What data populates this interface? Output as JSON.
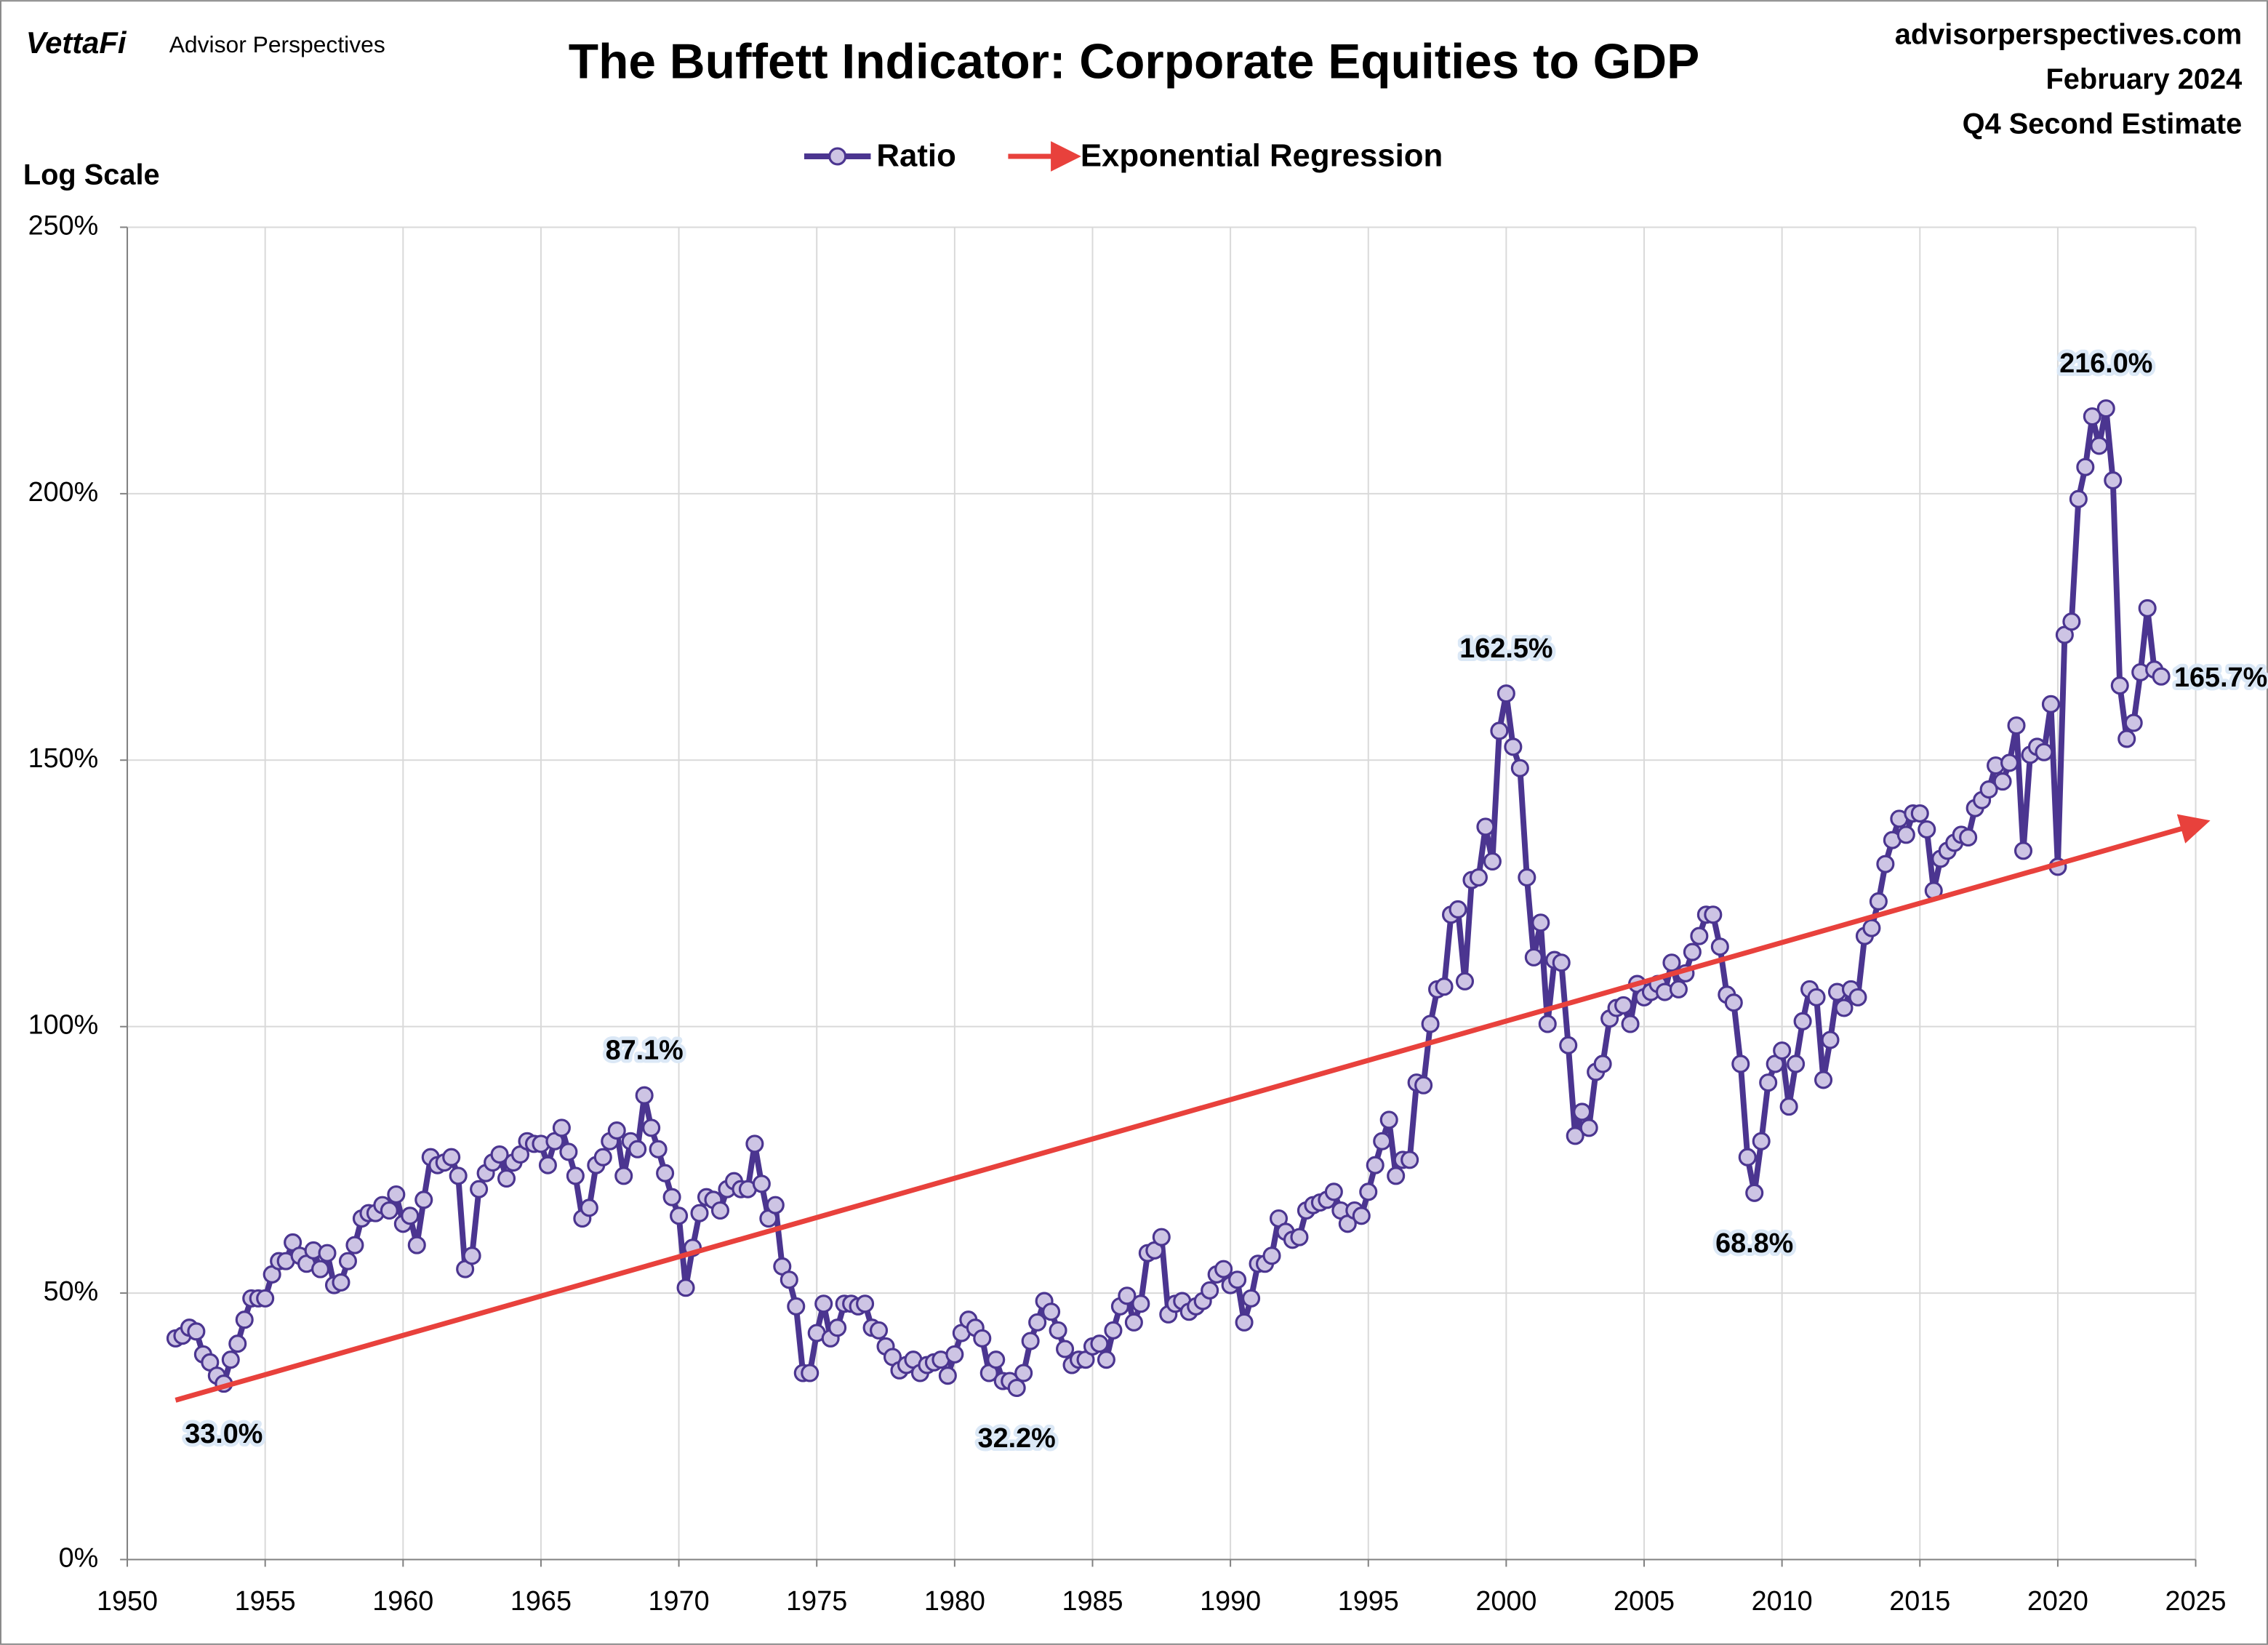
{
  "header": {
    "brand": "VettaFi",
    "brand_sub": "Advisor Perspectives",
    "site": "advisorperspectives.com",
    "date": "February 2024",
    "estimate": "Q4 Second Estimate"
  },
  "chart_data": {
    "type": "line",
    "title": "The Buffett Indicator: Corporate Equities to GDP",
    "y_axis_note": "Log Scale",
    "xlim": [
      1950,
      2025
    ],
    "xticks": [
      1950,
      1955,
      1960,
      1965,
      1970,
      1975,
      1980,
      1985,
      1990,
      1995,
      2000,
      2005,
      2010,
      2015,
      2020,
      2025
    ],
    "ylim": [
      0,
      250
    ],
    "yticks": [
      {
        "value": 0,
        "label": "0%"
      },
      {
        "value": 50,
        "label": "50%"
      },
      {
        "value": 100,
        "label": "100%"
      },
      {
        "value": 150,
        "label": "150%"
      },
      {
        "value": 200,
        "label": "200%"
      },
      {
        "value": 250,
        "label": "250%"
      }
    ],
    "grid": true,
    "legend": "top",
    "series": [
      {
        "name": "Ratio",
        "color": "#4b3590",
        "marker": "circle",
        "marker_color": "#cdc4e4",
        "label_color": "#3d2a8c",
        "x": [
          1951.75,
          1952,
          1952.25,
          1952.5,
          1952.75,
          1953,
          1953.25,
          1953.5,
          1953.75,
          1954,
          1954.25,
          1954.5,
          1954.75,
          1955,
          1955.25,
          1955.5,
          1955.75,
          1956,
          1956.25,
          1956.5,
          1956.75,
          1957,
          1957.25,
          1957.5,
          1957.75,
          1958,
          1958.25,
          1958.5,
          1958.75,
          1959,
          1959.25,
          1959.5,
          1959.75,
          1960,
          1960.25,
          1960.5,
          1960.75,
          1961,
          1961.25,
          1961.5,
          1961.75,
          1962,
          1962.25,
          1962.5,
          1962.75,
          1963,
          1963.25,
          1963.5,
          1963.75,
          1964,
          1964.25,
          1964.5,
          1964.75,
          1965,
          1965.25,
          1965.5,
          1965.75,
          1966,
          1966.25,
          1966.5,
          1966.75,
          1967,
          1967.25,
          1967.5,
          1967.75,
          1968,
          1968.25,
          1968.5,
          1968.75,
          1969,
          1969.25,
          1969.5,
          1969.75,
          1970,
          1970.25,
          1970.5,
          1970.75,
          1971,
          1971.25,
          1971.5,
          1971.75,
          1972,
          1972.25,
          1972.5,
          1972.75,
          1973,
          1973.25,
          1973.5,
          1973.75,
          1974,
          1974.25,
          1974.5,
          1974.75,
          1975,
          1975.25,
          1975.5,
          1975.75,
          1976,
          1976.25,
          1976.5,
          1976.75,
          1977,
          1977.25,
          1977.5,
          1977.75,
          1978,
          1978.25,
          1978.5,
          1978.75,
          1979,
          1979.25,
          1979.5,
          1979.75,
          1980,
          1980.25,
          1980.5,
          1980.75,
          1981,
          1981.25,
          1981.5,
          1981.75,
          1982,
          1982.25,
          1982.5,
          1982.75,
          1983,
          1983.25,
          1983.5,
          1983.75,
          1984,
          1984.25,
          1984.5,
          1984.75,
          1985,
          1985.25,
          1985.5,
          1985.75,
          1986,
          1986.25,
          1986.5,
          1986.75,
          1987,
          1987.25,
          1987.5,
          1987.75,
          1988,
          1988.25,
          1988.5,
          1988.75,
          1989,
          1989.25,
          1989.5,
          1989.75,
          1990,
          1990.25,
          1990.5,
          1990.75,
          1991,
          1991.25,
          1991.5,
          1991.75,
          1992,
          1992.25,
          1992.5,
          1992.75,
          1993,
          1993.25,
          1993.5,
          1993.75,
          1994,
          1994.25,
          1994.5,
          1994.75,
          1995,
          1995.25,
          1995.5,
          1995.75,
          1996,
          1996.25,
          1996.5,
          1996.75,
          1997,
          1997.25,
          1997.5,
          1997.75,
          1998,
          1998.25,
          1998.5,
          1998.75,
          1999,
          1999.25,
          1999.5,
          1999.75,
          2000,
          2000.25,
          2000.5,
          2000.75,
          2001,
          2001.25,
          2001.5,
          2001.75,
          2002,
          2002.25,
          2002.5,
          2002.75,
          2003,
          2003.25,
          2003.5,
          2003.75,
          2004,
          2004.25,
          2004.5,
          2004.75,
          2005,
          2005.25,
          2005.5,
          2005.75,
          2006,
          2006.25,
          2006.5,
          2006.75,
          2007,
          2007.25,
          2007.5,
          2007.75,
          2008,
          2008.25,
          2008.5,
          2008.75,
          2009,
          2009.25,
          2009.5,
          2009.75,
          2010,
          2010.25,
          2010.5,
          2010.75,
          2011,
          2011.25,
          2011.5,
          2011.75,
          2012,
          2012.25,
          2012.5,
          2012.75,
          2013,
          2013.25,
          2013.5,
          2013.75,
          2014,
          2014.25,
          2014.5,
          2014.75,
          2015,
          2015.25,
          2015.5,
          2015.75,
          2016,
          2016.25,
          2016.5,
          2016.75,
          2017,
          2017.25,
          2017.5,
          2017.75,
          2018,
          2018.25,
          2018.5,
          2018.75,
          2019,
          2019.25,
          2019.5,
          2019.75,
          2020,
          2020.25,
          2020.5,
          2020.75,
          2021,
          2021.25,
          2021.5,
          2021.75,
          2022,
          2022.25,
          2022.5,
          2022.75,
          2023,
          2023.25,
          2023.5,
          2023.75
        ],
        "values": [
          41.5,
          42,
          43.5,
          42.8,
          38.5,
          37,
          34.5,
          33.0,
          37.5,
          40.5,
          45,
          49,
          49,
          49,
          53.5,
          56,
          56,
          59.5,
          57,
          55.5,
          58,
          54.5,
          57.5,
          51.5,
          52,
          56,
          59,
          64,
          65,
          65,
          66.5,
          65.5,
          68.5,
          63,
          64.5,
          59,
          67.5,
          75.5,
          74,
          74.5,
          75.5,
          72,
          54.5,
          57,
          69.5,
          72.5,
          74.5,
          76,
          71.5,
          74.5,
          76,
          78.5,
          78,
          78,
          74,
          78.5,
          81,
          76.5,
          72,
          64,
          66,
          74,
          75.5,
          78.5,
          80.5,
          72,
          78.5,
          77,
          87.1,
          81,
          77,
          72.5,
          68,
          64.5,
          51,
          58.5,
          65,
          68,
          67.5,
          65.5,
          69.5,
          71,
          69.5,
          69.5,
          78,
          70.5,
          64,
          66.5,
          55,
          52.5,
          47.5,
          35,
          35,
          42.5,
          48,
          41.5,
          43.5,
          48,
          48,
          47.5,
          48,
          43.5,
          43,
          40,
          38,
          35.5,
          36.5,
          37.5,
          35,
          36.5,
          37,
          37.5,
          34.5,
          38.5,
          42.5,
          45,
          43.5,
          41.5,
          35,
          37.5,
          33.5,
          33.5,
          32.2,
          35,
          41,
          44.5,
          48.5,
          46.5,
          43,
          39.5,
          36.5,
          37.5,
          37.5,
          40,
          40.5,
          37.5,
          43,
          47.5,
          49.5,
          44.5,
          48,
          57.5,
          58,
          60.5,
          46,
          48,
          48.5,
          46.5,
          47.5,
          48.5,
          50.5,
          53.5,
          54.5,
          51.5,
          52.5,
          44.5,
          49,
          55.5,
          55.5,
          57,
          64,
          61.5,
          60,
          60.5,
          65.5,
          66.5,
          67,
          67.5,
          69,
          65.5,
          63,
          65.5,
          64.5,
          69,
          74,
          78.5,
          82.5,
          72,
          75,
          75,
          89.5,
          89,
          100.5,
          107,
          107.5,
          121,
          122,
          108.5,
          127.5,
          128,
          137.5,
          131,
          155.5,
          162.5,
          152.5,
          148.5,
          128,
          113,
          119.5,
          100.5,
          112.5,
          112,
          96.5,
          79.5,
          84,
          81,
          91.5,
          93,
          101.5,
          103.5,
          104,
          100.5,
          108,
          105.5,
          106.5,
          108,
          106.5,
          112,
          107,
          110,
          114,
          117,
          121,
          121,
          115,
          106,
          104.5,
          93,
          75.5,
          68.8,
          78.5,
          89.5,
          93,
          95.5,
          85,
          93,
          101,
          107,
          105.5,
          90,
          97.5,
          106.5,
          103.5,
          107,
          105.5,
          117,
          118.5,
          123.5,
          130.5,
          135,
          139,
          136,
          140,
          140,
          137,
          125.5,
          131.5,
          133,
          134.5,
          136,
          135.5,
          141,
          142.5,
          144.5,
          149,
          146,
          149.5,
          156.5,
          133,
          151,
          152.5,
          151.5,
          160.5,
          130,
          173.5,
          176,
          199,
          205,
          214.5,
          209,
          216.0,
          202.5,
          164,
          154,
          157,
          166.5,
          178.5,
          167,
          165.7
        ],
        "value_labels": [
          null,
          null,
          null,
          null,
          null,
          null,
          null,
          "33.0%",
          null,
          null,
          null,
          null,
          null,
          null,
          null,
          null,
          null,
          null,
          null,
          null,
          null,
          null,
          null,
          null,
          null,
          null,
          null,
          null,
          null,
          null,
          null,
          null,
          null,
          null,
          null,
          null,
          null,
          null,
          null,
          null,
          null,
          null,
          null,
          null,
          null,
          null,
          null,
          null,
          null,
          null,
          null,
          null,
          null,
          null,
          null,
          null,
          null,
          null,
          null,
          null,
          null,
          null,
          null,
          null,
          null,
          null,
          null,
          null,
          "87.1%",
          null,
          null,
          null,
          null,
          null,
          null,
          null,
          null,
          null,
          null,
          null,
          null,
          null,
          null,
          null,
          null,
          null,
          null,
          null,
          null,
          null,
          null,
          null,
          null,
          null,
          null,
          null,
          null,
          null,
          null,
          null,
          null,
          null,
          null,
          null,
          null,
          null,
          null,
          null,
          null,
          null,
          null,
          null,
          null,
          null,
          null,
          null,
          null,
          null,
          null,
          null,
          null,
          null,
          "32.2%",
          null,
          null,
          null,
          null,
          null,
          null,
          null,
          null,
          null,
          null,
          null,
          null,
          null,
          null,
          null,
          null,
          null,
          null,
          null,
          null,
          null,
          null,
          null,
          null,
          null,
          null,
          null,
          null,
          null,
          null,
          null,
          null,
          null,
          null,
          null,
          null,
          null,
          null,
          null,
          null,
          null,
          null,
          null,
          null,
          null,
          null,
          null,
          null,
          null,
          null,
          null,
          null,
          null,
          null,
          null,
          null,
          null,
          null,
          null,
          null,
          null,
          null,
          null,
          null,
          null,
          null,
          null,
          null,
          null,
          null,
          "162.5%",
          null,
          null,
          null,
          null,
          null,
          null,
          null,
          null,
          null,
          null,
          null,
          null,
          null,
          null,
          null,
          null,
          null,
          null,
          null,
          null,
          null,
          null,
          null,
          null,
          null,
          null,
          null,
          null,
          null,
          null,
          null,
          null,
          null,
          null,
          null,
          "68.8%",
          null,
          null,
          null,
          null,
          null,
          null,
          null,
          null,
          null,
          null,
          null,
          null,
          null,
          null,
          null,
          null,
          null,
          null,
          null,
          null,
          null,
          null,
          null,
          null,
          null,
          null,
          null,
          null,
          null,
          null,
          null,
          null,
          null,
          null,
          null,
          null,
          null,
          null,
          null,
          null,
          null,
          null,
          null,
          null,
          null,
          null,
          null,
          null,
          null,
          null,
          "216.0%",
          null,
          null,
          null,
          null,
          null,
          null,
          null,
          "165.7%"
        ]
      },
      {
        "name": "Exponential Regression",
        "color": "#e8413c",
        "marker": "arrow",
        "label_color": "#c8161d",
        "x": [
          1951.75,
          2025
        ],
        "values": [
          29.9,
          137.9
        ]
      }
    ]
  }
}
